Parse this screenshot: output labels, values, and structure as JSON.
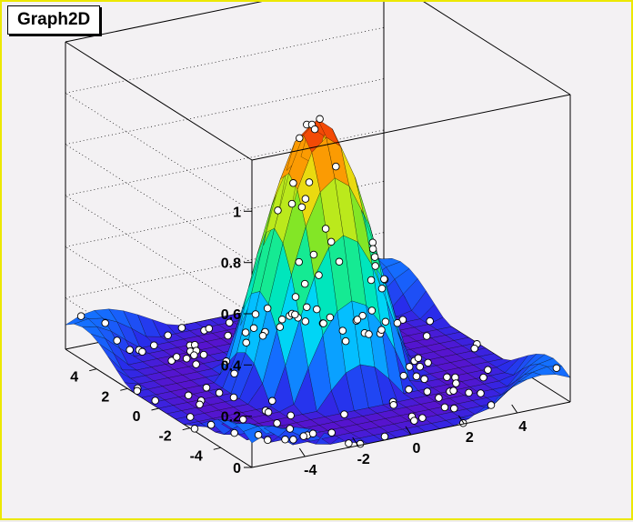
{
  "title": "Graph2D",
  "colors": {
    "background": "#f3f1f3",
    "frame_border": "#ece800",
    "marker_fill": "#ffffff",
    "mesh_line": "#000000"
  },
  "chart_data": {
    "type": "surface",
    "title": "Graph2D",
    "xlabel": "",
    "ylabel": "",
    "zlabel": "",
    "xlim": [
      -6,
      6
    ],
    "ylim": [
      -6,
      6
    ],
    "zlim": [
      0,
      1.2
    ],
    "x_ticks": [
      -4,
      -2,
      0,
      2,
      4
    ],
    "y_ticks": [
      -4,
      -2,
      0,
      2,
      4
    ],
    "z_ticks": [
      0,
      0.2,
      0.4,
      0.6,
      0.8,
      1
    ],
    "x_tick_labels": [
      "-4",
      "-2",
      "0",
      "2",
      "4"
    ],
    "y_tick_labels": [
      "-4",
      "-2",
      "0",
      "2",
      "4"
    ],
    "z_tick_labels": [
      "0",
      "0.2",
      "0.4",
      "0.6",
      "0.8",
      "1"
    ],
    "function": "sin(sqrt(x^2+y^2))/sqrt(x^2+y^2)",
    "palette": "rainbow",
    "grid": true,
    "markers": "white circles at each data point"
  }
}
